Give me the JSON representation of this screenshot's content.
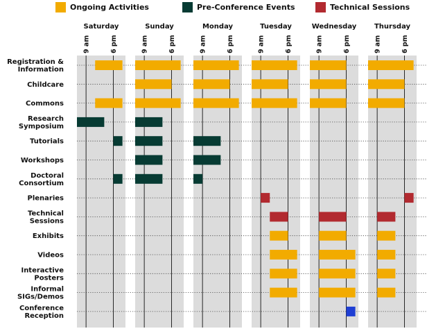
{
  "chart_data": {
    "type": "timeline",
    "title": "",
    "legend": {
      "placement": "top",
      "items": [
        {
          "key": "ongoing",
          "label": "Ongoing Activities",
          "color": "#f2ab00"
        },
        {
          "key": "pre",
          "label": "Pre-Conference Events",
          "color": "#073b33"
        },
        {
          "key": "tech",
          "label": "Technical Sessions",
          "color": "#b22a30"
        }
      ]
    },
    "extra_colors": {
      "reception": "#1f3fd4",
      "day_background": "#dcdcdc"
    },
    "days": [
      "Saturday",
      "Sunday",
      "Monday",
      "Tuesday",
      "Wednesday",
      "Thursday"
    ],
    "hour_ticks": [
      {
        "hour": 9,
        "label": "9 am"
      },
      {
        "hour": 18,
        "label": "6 pm"
      }
    ],
    "day_hour_range": [
      6,
      22
    ],
    "gridlines": "dotted",
    "rows": [
      {
        "label": "Registration &\nInformation",
        "bars": [
          {
            "day": "Saturday",
            "start": 12,
            "end": 21,
            "type": "ongoing"
          },
          {
            "day": "Sunday",
            "start": 6,
            "end": 21,
            "type": "ongoing"
          },
          {
            "day": "Monday",
            "start": 6,
            "end": 21,
            "type": "ongoing"
          },
          {
            "day": "Tuesday",
            "start": 6,
            "end": 21,
            "type": "ongoing"
          },
          {
            "day": "Wednesday",
            "start": 6,
            "end": 18,
            "type": "ongoing"
          },
          {
            "day": "Thursday",
            "start": 6,
            "end": 21,
            "type": "ongoing"
          }
        ]
      },
      {
        "label": "Childcare",
        "bars": [
          {
            "day": "Sunday",
            "start": 6,
            "end": 18,
            "type": "ongoing"
          },
          {
            "day": "Monday",
            "start": 6,
            "end": 18,
            "type": "ongoing"
          },
          {
            "day": "Tuesday",
            "start": 6,
            "end": 18,
            "type": "ongoing"
          },
          {
            "day": "Wednesday",
            "start": 6,
            "end": 18,
            "type": "ongoing"
          },
          {
            "day": "Thursday",
            "start": 6,
            "end": 18,
            "type": "ongoing"
          }
        ]
      },
      {
        "label": "Commons",
        "bars": [
          {
            "day": "Saturday",
            "start": 12,
            "end": 21,
            "type": "ongoing"
          },
          {
            "day": "Sunday",
            "start": 6,
            "end": 21,
            "type": "ongoing"
          },
          {
            "day": "Monday",
            "start": 6,
            "end": 21,
            "type": "ongoing"
          },
          {
            "day": "Tuesday",
            "start": 6,
            "end": 21,
            "type": "ongoing"
          },
          {
            "day": "Wednesday",
            "start": 6,
            "end": 18,
            "type": "ongoing"
          },
          {
            "day": "Thursday",
            "start": 6,
            "end": 18,
            "type": "ongoing"
          }
        ]
      },
      {
        "label": "Research\nSymposium",
        "bars": [
          {
            "day": "Saturday",
            "start": 6,
            "end": 15,
            "type": "pre"
          },
          {
            "day": "Sunday",
            "start": 6,
            "end": 15,
            "type": "pre"
          }
        ]
      },
      {
        "label": "Tutorials",
        "bars": [
          {
            "day": "Saturday",
            "start": 18,
            "end": 21,
            "type": "pre"
          },
          {
            "day": "Sunday",
            "start": 6,
            "end": 15,
            "type": "pre"
          },
          {
            "day": "Monday",
            "start": 6,
            "end": 15,
            "type": "pre"
          }
        ]
      },
      {
        "label": "Workshops",
        "bars": [
          {
            "day": "Sunday",
            "start": 6,
            "end": 15,
            "type": "pre"
          },
          {
            "day": "Monday",
            "start": 6,
            "end": 15,
            "type": "pre"
          }
        ]
      },
      {
        "label": "Doctoral\nConsortium",
        "bars": [
          {
            "day": "Saturday",
            "start": 18,
            "end": 21,
            "type": "pre"
          },
          {
            "day": "Sunday",
            "start": 6,
            "end": 15,
            "type": "pre"
          },
          {
            "day": "Monday",
            "start": 6,
            "end": 9,
            "type": "pre"
          }
        ]
      },
      {
        "label": "Plenaries",
        "bars": [
          {
            "day": "Tuesday",
            "start": 9,
            "end": 12,
            "type": "tech"
          },
          {
            "day": "Thursday",
            "start": 18,
            "end": 21,
            "type": "tech"
          }
        ]
      },
      {
        "label": "Technical\nSessions",
        "bars": [
          {
            "day": "Tuesday",
            "start": 12,
            "end": 18,
            "type": "tech"
          },
          {
            "day": "Wednesday",
            "start": 9,
            "end": 18,
            "type": "tech"
          },
          {
            "day": "Thursday",
            "start": 9,
            "end": 15,
            "type": "tech"
          }
        ]
      },
      {
        "label": "Exhibits",
        "bars": [
          {
            "day": "Tuesday",
            "start": 12,
            "end": 18,
            "type": "ongoing"
          },
          {
            "day": "Wednesday",
            "start": 9,
            "end": 18,
            "type": "ongoing"
          },
          {
            "day": "Thursday",
            "start": 9,
            "end": 15,
            "type": "ongoing"
          }
        ]
      },
      {
        "label": "Videos",
        "bars": [
          {
            "day": "Tuesday",
            "start": 12,
            "end": 21,
            "type": "ongoing"
          },
          {
            "day": "Wednesday",
            "start": 9,
            "end": 21,
            "type": "ongoing"
          },
          {
            "day": "Thursday",
            "start": 9,
            "end": 15,
            "type": "ongoing"
          }
        ]
      },
      {
        "label": "Interactive\nPosters",
        "bars": [
          {
            "day": "Tuesday",
            "start": 12,
            "end": 21,
            "type": "ongoing"
          },
          {
            "day": "Wednesday",
            "start": 9,
            "end": 21,
            "type": "ongoing"
          },
          {
            "day": "Thursday",
            "start": 9,
            "end": 15,
            "type": "ongoing"
          }
        ]
      },
      {
        "label": "Informal\nSIGs/Demos",
        "bars": [
          {
            "day": "Tuesday",
            "start": 12,
            "end": 21,
            "type": "ongoing"
          },
          {
            "day": "Wednesday",
            "start": 9,
            "end": 21,
            "type": "ongoing"
          },
          {
            "day": "Thursday",
            "start": 9,
            "end": 15,
            "type": "ongoing"
          }
        ]
      },
      {
        "label": "Conference\nReception",
        "bars": [
          {
            "day": "Wednesday",
            "start": 18,
            "end": 21,
            "type": "reception"
          }
        ]
      }
    ]
  }
}
